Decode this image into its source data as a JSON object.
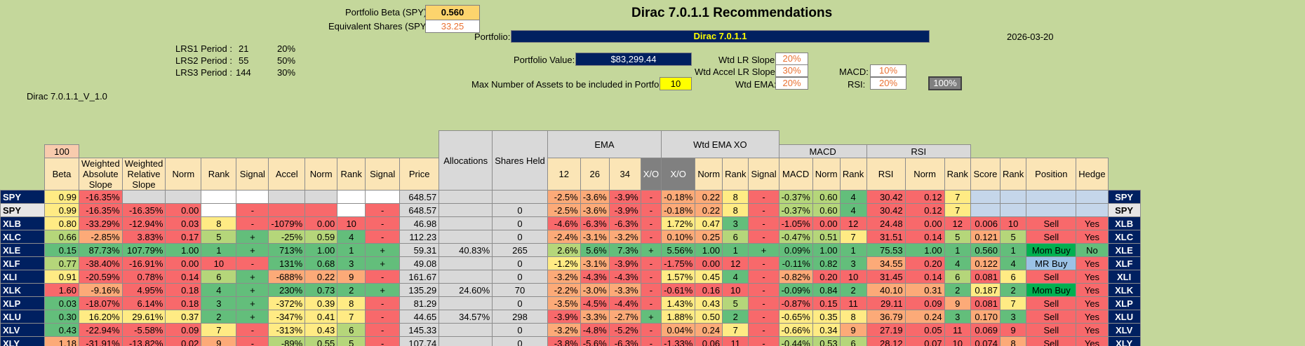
{
  "header": {
    "beta_label": "Portfolio Beta (SPY):",
    "beta_value": "0.560",
    "equiv_label": "Equivalent Shares (SPY):",
    "equiv_value": "33.25",
    "title": "Dirac 7.0.1.1 Recommendations",
    "portfolio_label": "Portfolio:",
    "portfolio_name": "Dirac 7.0.1.1",
    "date": "2026-03-20",
    "value_label": "Portfolio Value:",
    "value": "$83,299.44",
    "max_assets_label": "Max Number of Assets to be included in Portfolio:",
    "max_assets": "10",
    "version": "Dirac 7.0.1.1_V_1.0"
  },
  "lrs": [
    {
      "label": "LRS1 Period :",
      "period": "21",
      "weight": "20%"
    },
    {
      "label": "LRS2 Period :",
      "period": "55",
      "weight": "50%"
    },
    {
      "label": "LRS3 Period :",
      "period": "144",
      "weight": "30%"
    }
  ],
  "weights": {
    "lr_slope_label": "Wtd LR Slope:",
    "lr_slope": "20%",
    "accel_label": "Wtd Accel LR Slope:",
    "accel": "30%",
    "ema_label": "Wtd EMA:",
    "ema": "20%",
    "macd_label": "MACD:",
    "macd": "10%",
    "rsi_label": "RSI:",
    "rsi": "20%",
    "total": "100%"
  },
  "table": {
    "top_hundred": "100",
    "groups": {
      "ema": "EMA",
      "wtd_ema_xo": "Wtd EMA XO",
      "macd": "MACD",
      "rsi": "RSI"
    },
    "columns": [
      "Beta",
      "Weighted Absolute Slope",
      "Weighted Relative Slope",
      "Norm",
      "Rank",
      "Signal",
      "Accel",
      "Norm",
      "Rank",
      "Signal",
      "Price",
      "Allocations",
      "Shares Held",
      "12",
      "26",
      "34",
      "X/O",
      "X/O",
      "Norm",
      "Rank",
      "Signal",
      "MACD",
      "Norm",
      "Rank",
      "RSI",
      "Norm",
      "Rank",
      "Score",
      "Rank",
      "Position",
      "Hedge"
    ],
    "rows": [
      [
        "SPY",
        "0.99",
        "-16.35%",
        "",
        "",
        "",
        "",
        "",
        "",
        "",
        "",
        "648.57",
        "",
        "",
        "-2.5%",
        "-3.6%",
        "-3.9%",
        "-",
        "-0.18%",
        "0.22",
        "8",
        "-",
        "-0.37%",
        "0.60",
        "4",
        "30.42",
        "0.12",
        "7",
        "",
        "",
        "",
        "",
        "SPY"
      ],
      [
        "SPY",
        "0.99",
        "-16.35%",
        "-16.35%",
        "0.00",
        "",
        "-",
        "",
        "",
        "",
        "-",
        "648.57",
        "",
        "0",
        "-2.5%",
        "-3.6%",
        "-3.9%",
        "-",
        "-0.18%",
        "0.22",
        "8",
        "-",
        "-0.37%",
        "0.60",
        "4",
        "30.42",
        "0.12",
        "7",
        "",
        "",
        "",
        "",
        "SPY"
      ],
      [
        "XLB",
        "0.80",
        "-33.29%",
        "-12.94%",
        "0.03",
        "8",
        "-",
        "-1079%",
        "0.00",
        "10",
        "-",
        "46.98",
        "",
        "0",
        "-4.6%",
        "-6.3%",
        "-6.3%",
        "-",
        "1.72%",
        "0.47",
        "3",
        "-",
        "-1.05%",
        "0.00",
        "12",
        "24.48",
        "0.00",
        "12",
        "0.006",
        "10",
        "Sell",
        "Yes",
        "XLB"
      ],
      [
        "XLC",
        "0.66",
        "-2.85%",
        "3.83%",
        "0.17",
        "5",
        "+",
        "-25%",
        "0.59",
        "4",
        "-",
        "112.23",
        "",
        "0",
        "-2.4%",
        "-3.1%",
        "-3.2%",
        "-",
        "0.10%",
        "0.25",
        "6",
        "-",
        "-0.47%",
        "0.51",
        "7",
        "31.51",
        "0.14",
        "5",
        "0.121",
        "5",
        "Sell",
        "Yes",
        "XLC"
      ],
      [
        "XLE",
        "0.15",
        "87.73%",
        "107.79%",
        "1.00",
        "1",
        "+",
        "713%",
        "1.00",
        "1",
        "+",
        "59.31",
        "40.83%",
        "265",
        "2.6%",
        "5.6%",
        "7.3%",
        "+",
        "5.56%",
        "1.00",
        "1",
        "+",
        "0.09%",
        "1.00",
        "1",
        "75.53",
        "1.00",
        "1",
        "0.560",
        "1",
        "Mom Buy",
        "No",
        "XLE"
      ],
      [
        "XLF",
        "0.77",
        "-38.40%",
        "-16.91%",
        "0.00",
        "10",
        "-",
        "131%",
        "0.68",
        "3",
        "+",
        "49.08",
        "",
        "0",
        "-1.2%",
        "-3.1%",
        "-3.9%",
        "-",
        "-1.75%",
        "0.00",
        "12",
        "-",
        "-0.11%",
        "0.82",
        "3",
        "34.55",
        "0.20",
        "4",
        "0.122",
        "4",
        "MR Buy",
        "Yes",
        "XLF"
      ],
      [
        "XLI",
        "0.91",
        "-20.59%",
        "0.78%",
        "0.14",
        "6",
        "+",
        "-688%",
        "0.22",
        "9",
        "-",
        "161.67",
        "",
        "0",
        "-3.2%",
        "-4.3%",
        "-4.3%",
        "-",
        "1.57%",
        "0.45",
        "4",
        "-",
        "-0.82%",
        "0.20",
        "10",
        "31.45",
        "0.14",
        "6",
        "0.081",
        "6",
        "Sell",
        "Yes",
        "XLI"
      ],
      [
        "XLK",
        "1.60",
        "-9.16%",
        "4.95%",
        "0.18",
        "4",
        "+",
        "230%",
        "0.73",
        "2",
        "+",
        "135.29",
        "24.60%",
        "70",
        "-2.2%",
        "-3.0%",
        "-3.3%",
        "-",
        "-0.61%",
        "0.16",
        "10",
        "-",
        "-0.09%",
        "0.84",
        "2",
        "40.10",
        "0.31",
        "2",
        "0.187",
        "2",
        "Mom Buy",
        "Yes",
        "XLK"
      ],
      [
        "XLP",
        "0.03",
        "-18.07%",
        "6.14%",
        "0.18",
        "3",
        "+",
        "-372%",
        "0.39",
        "8",
        "-",
        "81.29",
        "",
        "0",
        "-3.5%",
        "-4.5%",
        "-4.4%",
        "-",
        "1.43%",
        "0.43",
        "5",
        "-",
        "-0.87%",
        "0.15",
        "11",
        "29.11",
        "0.09",
        "9",
        "0.081",
        "7",
        "Sell",
        "Yes",
        "XLP"
      ],
      [
        "XLU",
        "0.30",
        "16.20%",
        "29.61%",
        "0.37",
        "2",
        "+",
        "-347%",
        "0.41",
        "7",
        "-",
        "44.65",
        "34.57%",
        "298",
        "-3.9%",
        "-3.3%",
        "-2.7%",
        "+",
        "1.88%",
        "0.50",
        "2",
        "-",
        "-0.65%",
        "0.35",
        "8",
        "36.79",
        "0.24",
        "3",
        "0.170",
        "3",
        "Sell",
        "Yes",
        "XLU"
      ],
      [
        "XLV",
        "0.43",
        "-22.94%",
        "-5.58%",
        "0.09",
        "7",
        "-",
        "-313%",
        "0.43",
        "6",
        "-",
        "145.33",
        "",
        "0",
        "-3.2%",
        "-4.8%",
        "-5.2%",
        "-",
        "0.04%",
        "0.24",
        "7",
        "-",
        "-0.66%",
        "0.34",
        "9",
        "27.19",
        "0.05",
        "11",
        "0.069",
        "9",
        "Sell",
        "Yes",
        "XLV"
      ],
      [
        "XLY",
        "1.18",
        "-31.91%",
        "-13.82%",
        "0.02",
        "9",
        "-",
        "-89%",
        "0.55",
        "5",
        "-",
        "107.74",
        "",
        "0",
        "-3.8%",
        "-5.6%",
        "-6.3%",
        "-",
        "-1.33%",
        "0.06",
        "11",
        "-",
        "-0.44%",
        "0.53",
        "6",
        "28.12",
        "0.07",
        "10",
        "0.074",
        "8",
        "Sell",
        "Yes",
        "XLY"
      ]
    ]
  },
  "colors": {
    "background": "#c4d79b",
    "navy": "#002060",
    "green": "#63be7b",
    "yellow": "#ffeb84",
    "red": "#f8696b",
    "mom_buy": "#00b050",
    "mr_buy": "#9bc2e6"
  }
}
